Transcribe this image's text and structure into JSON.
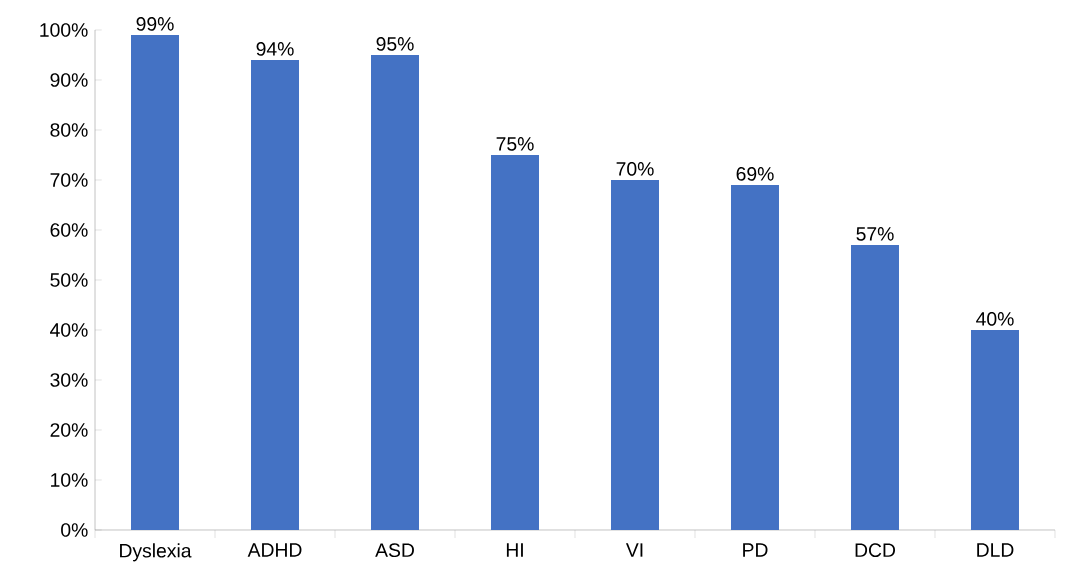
{
  "chart_data": {
    "type": "bar",
    "categories": [
      "Dyslexia",
      "ADHD",
      "ASD",
      "HI",
      "VI",
      "PD",
      "DCD",
      "DLD"
    ],
    "values": [
      99,
      94,
      95,
      75,
      70,
      69,
      57,
      40
    ],
    "value_labels": [
      "99%",
      "94%",
      "95%",
      "75%",
      "70%",
      "69%",
      "57%",
      "40%"
    ],
    "color": "#4472c4",
    "ylim": [
      0,
      100
    ],
    "yticks": [
      {
        "value": 0,
        "label": "0%"
      },
      {
        "value": 10,
        "label": "10%"
      },
      {
        "value": 20,
        "label": "20%"
      },
      {
        "value": 30,
        "label": "30%"
      },
      {
        "value": 40,
        "label": "40%"
      },
      {
        "value": 50,
        "label": "50%"
      },
      {
        "value": 60,
        "label": "60%"
      },
      {
        "value": 70,
        "label": "70%"
      },
      {
        "value": 80,
        "label": "80%"
      },
      {
        "value": 90,
        "label": "90%"
      },
      {
        "value": 100,
        "label": "100%"
      }
    ],
    "grid": false
  }
}
